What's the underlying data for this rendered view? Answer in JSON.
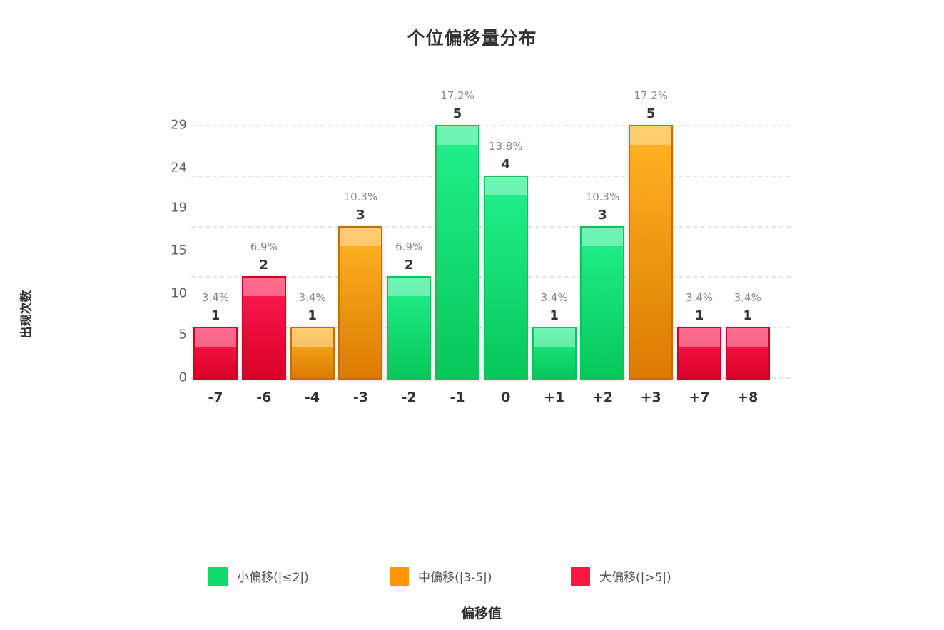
{
  "chart_data": {
    "type": "bar",
    "title": "个位偏移量分布",
    "xlabel": "偏移值",
    "ylabel": "出现次数",
    "categories": [
      "-7",
      "-6",
      "-4",
      "-3",
      "-2",
      "-1",
      "0",
      "+1",
      "+2",
      "+3",
      "+7",
      "+8"
    ],
    "values": [
      1,
      2,
      1,
      3,
      2,
      5,
      4,
      1,
      3,
      5,
      1,
      1
    ],
    "percentages": [
      "3.4%",
      "6.9%",
      "3.4%",
      "10.3%",
      "6.9%",
      "17.2%",
      "13.8%",
      "3.4%",
      "10.3%",
      "17.2%",
      "3.4%",
      "3.4%"
    ],
    "groups": [
      "large",
      "large",
      "medium",
      "medium",
      "small",
      "small",
      "small",
      "small",
      "small",
      "medium",
      "large",
      "large"
    ],
    "y_tick_labels": [
      "0",
      "5",
      "10",
      "15",
      "19",
      "24",
      "29"
    ],
    "ylim": [
      0,
      5
    ],
    "grid": true,
    "legend_position": "bottom",
    "legend": [
      {
        "key": "small",
        "label": "小偏移(|≤2|)",
        "color": "#0fd96a"
      },
      {
        "key": "medium",
        "label": "中偏移(|3-5|)",
        "color": "#ff9500"
      },
      {
        "key": "large",
        "label": "大偏移(|>5|)",
        "color": "#ff1744"
      }
    ]
  }
}
